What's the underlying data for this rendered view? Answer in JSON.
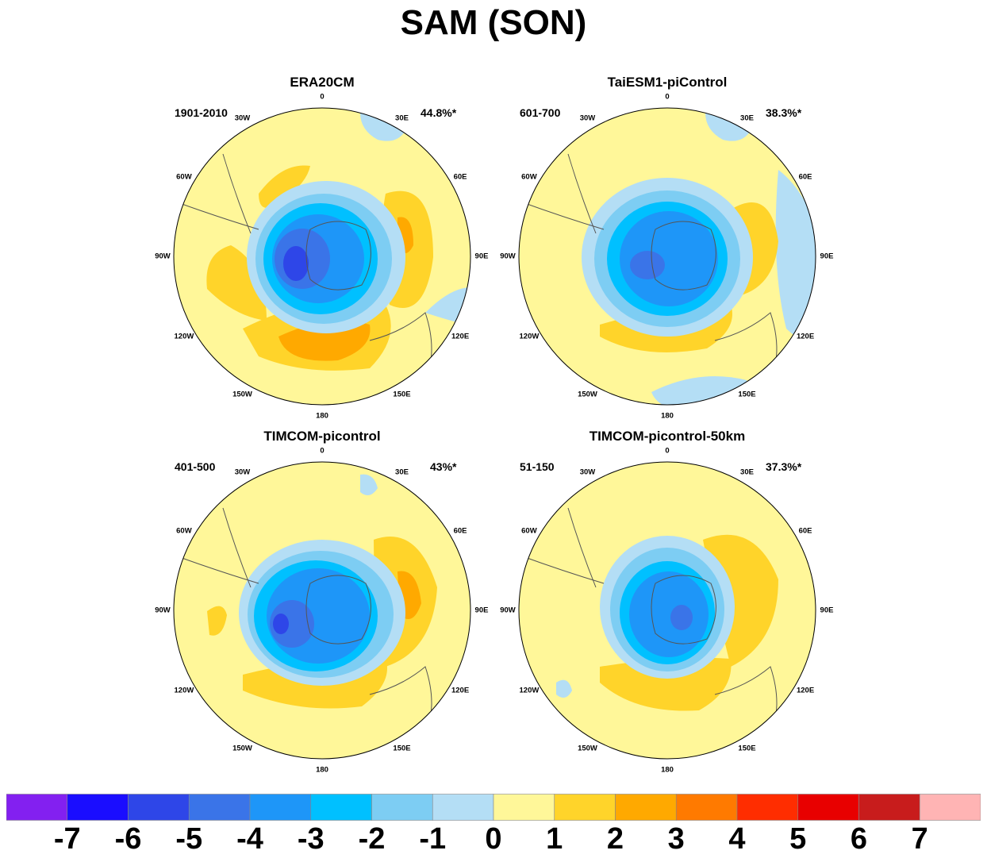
{
  "title": "SAM (SON)",
  "colors": {
    "neg7": "#8320f0",
    "neg6": "#1a0dff",
    "neg5": "#2e46e8",
    "neg4": "#3a74e8",
    "neg3": "#1e96f8",
    "neg2": "#00c0ff",
    "neg1": "#7dcdf3",
    "neg0": "#b4def5",
    "pos0": "#fff799",
    "pos1": "#ffd42a",
    "pos2": "#ffa900",
    "pos3": "#ff7a00",
    "pos4": "#ff2d00",
    "pos5": "#e80000",
    "pos6": "#c81c1c",
    "pos7": "#ffb4b4",
    "coast": "#555555"
  },
  "longitude_labels": [
    "0",
    "30E",
    "60E",
    "90E",
    "120E",
    "150E",
    "180",
    "150W",
    "120W",
    "90W",
    "60W",
    "30W"
  ],
  "panels": [
    {
      "title": "ERA20CM",
      "period": "1901-2010",
      "variance": "44.8%*"
    },
    {
      "title": "TaiESM1-piControl",
      "period": "601-700",
      "variance": "38.3%*"
    },
    {
      "title": "TIMCOM-picontrol",
      "period": "401-500",
      "variance": "43%*"
    },
    {
      "title": "TIMCOM-picontrol-50km",
      "period": "51-150",
      "variance": "37.3%*"
    }
  ],
  "colorbar": {
    "labels": [
      "-7",
      "-6",
      "-5",
      "-4",
      "-3",
      "-2",
      "-1",
      "0",
      "1",
      "2",
      "3",
      "4",
      "5",
      "6",
      "7"
    ],
    "colors": [
      "#8320f0",
      "#1a0dff",
      "#2e46e8",
      "#3a74e8",
      "#1e96f8",
      "#00c0ff",
      "#7dcdf3",
      "#b4def5",
      "#fff799",
      "#ffd42a",
      "#ffa900",
      "#ff7a00",
      "#ff2d00",
      "#e80000",
      "#c81c1c",
      "#ffb4b4"
    ]
  }
}
